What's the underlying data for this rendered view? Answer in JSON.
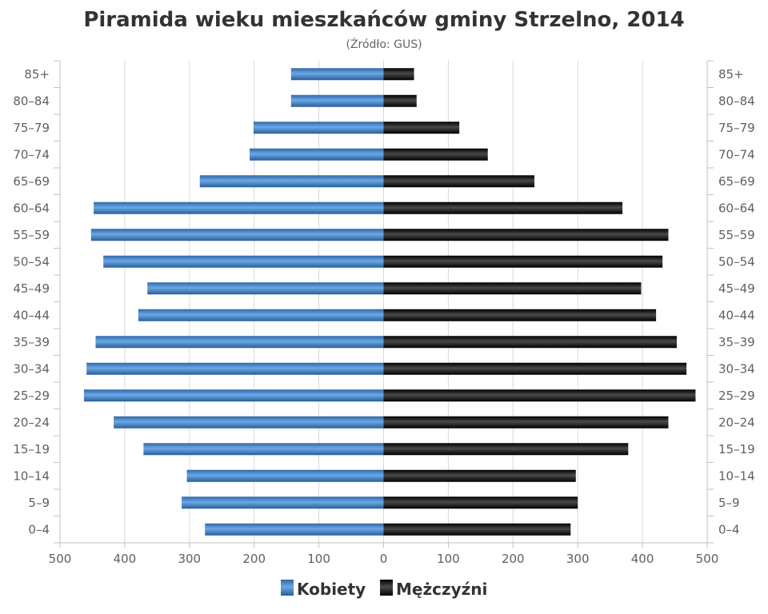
{
  "chart_data": {
    "type": "bar",
    "orientation": "horizontal-pyramid",
    "title": "Piramida wieku mieszkańców gminy Strzelno, 2014",
    "subtitle": "(Źródło: GUS)",
    "categories": [
      "85+",
      "80-84",
      "75-79",
      "70-74",
      "65-69",
      "60-64",
      "55-59",
      "50-54",
      "45-49",
      "40-44",
      "35-39",
      "30-34",
      "25-29",
      "20-24",
      "15-19",
      "10-14",
      "5-9",
      "0-4"
    ],
    "category_labels": [
      "85+",
      "80–84",
      "75–79",
      "70–74",
      "65–69",
      "60–64",
      "55–59",
      "50–54",
      "45–49",
      "40–44",
      "35–39",
      "30–34",
      "25–29",
      "20–24",
      "15–19",
      "10–14",
      "5–9",
      "0–4"
    ],
    "series": [
      {
        "name": "Kobiety",
        "color": "#4a86c8",
        "side": "left",
        "values": [
          143,
          143,
          201,
          207,
          284,
          448,
          452,
          433,
          365,
          379,
          445,
          459,
          463,
          417,
          371,
          304,
          312,
          276
        ]
      },
      {
        "name": "Mężczyźni",
        "color": "#1a1a1a",
        "side": "right",
        "values": [
          47,
          51,
          117,
          161,
          233,
          369,
          440,
          431,
          398,
          421,
          453,
          468,
          482,
          440,
          378,
          297,
          300,
          289
        ]
      }
    ],
    "x_ticks": [
      "500",
      "400",
      "300",
      "200",
      "100",
      "0",
      "100",
      "200",
      "300",
      "400",
      "500"
    ],
    "xlim": [
      -500,
      500
    ],
    "grid": true,
    "legend_position": "bottom-center"
  }
}
